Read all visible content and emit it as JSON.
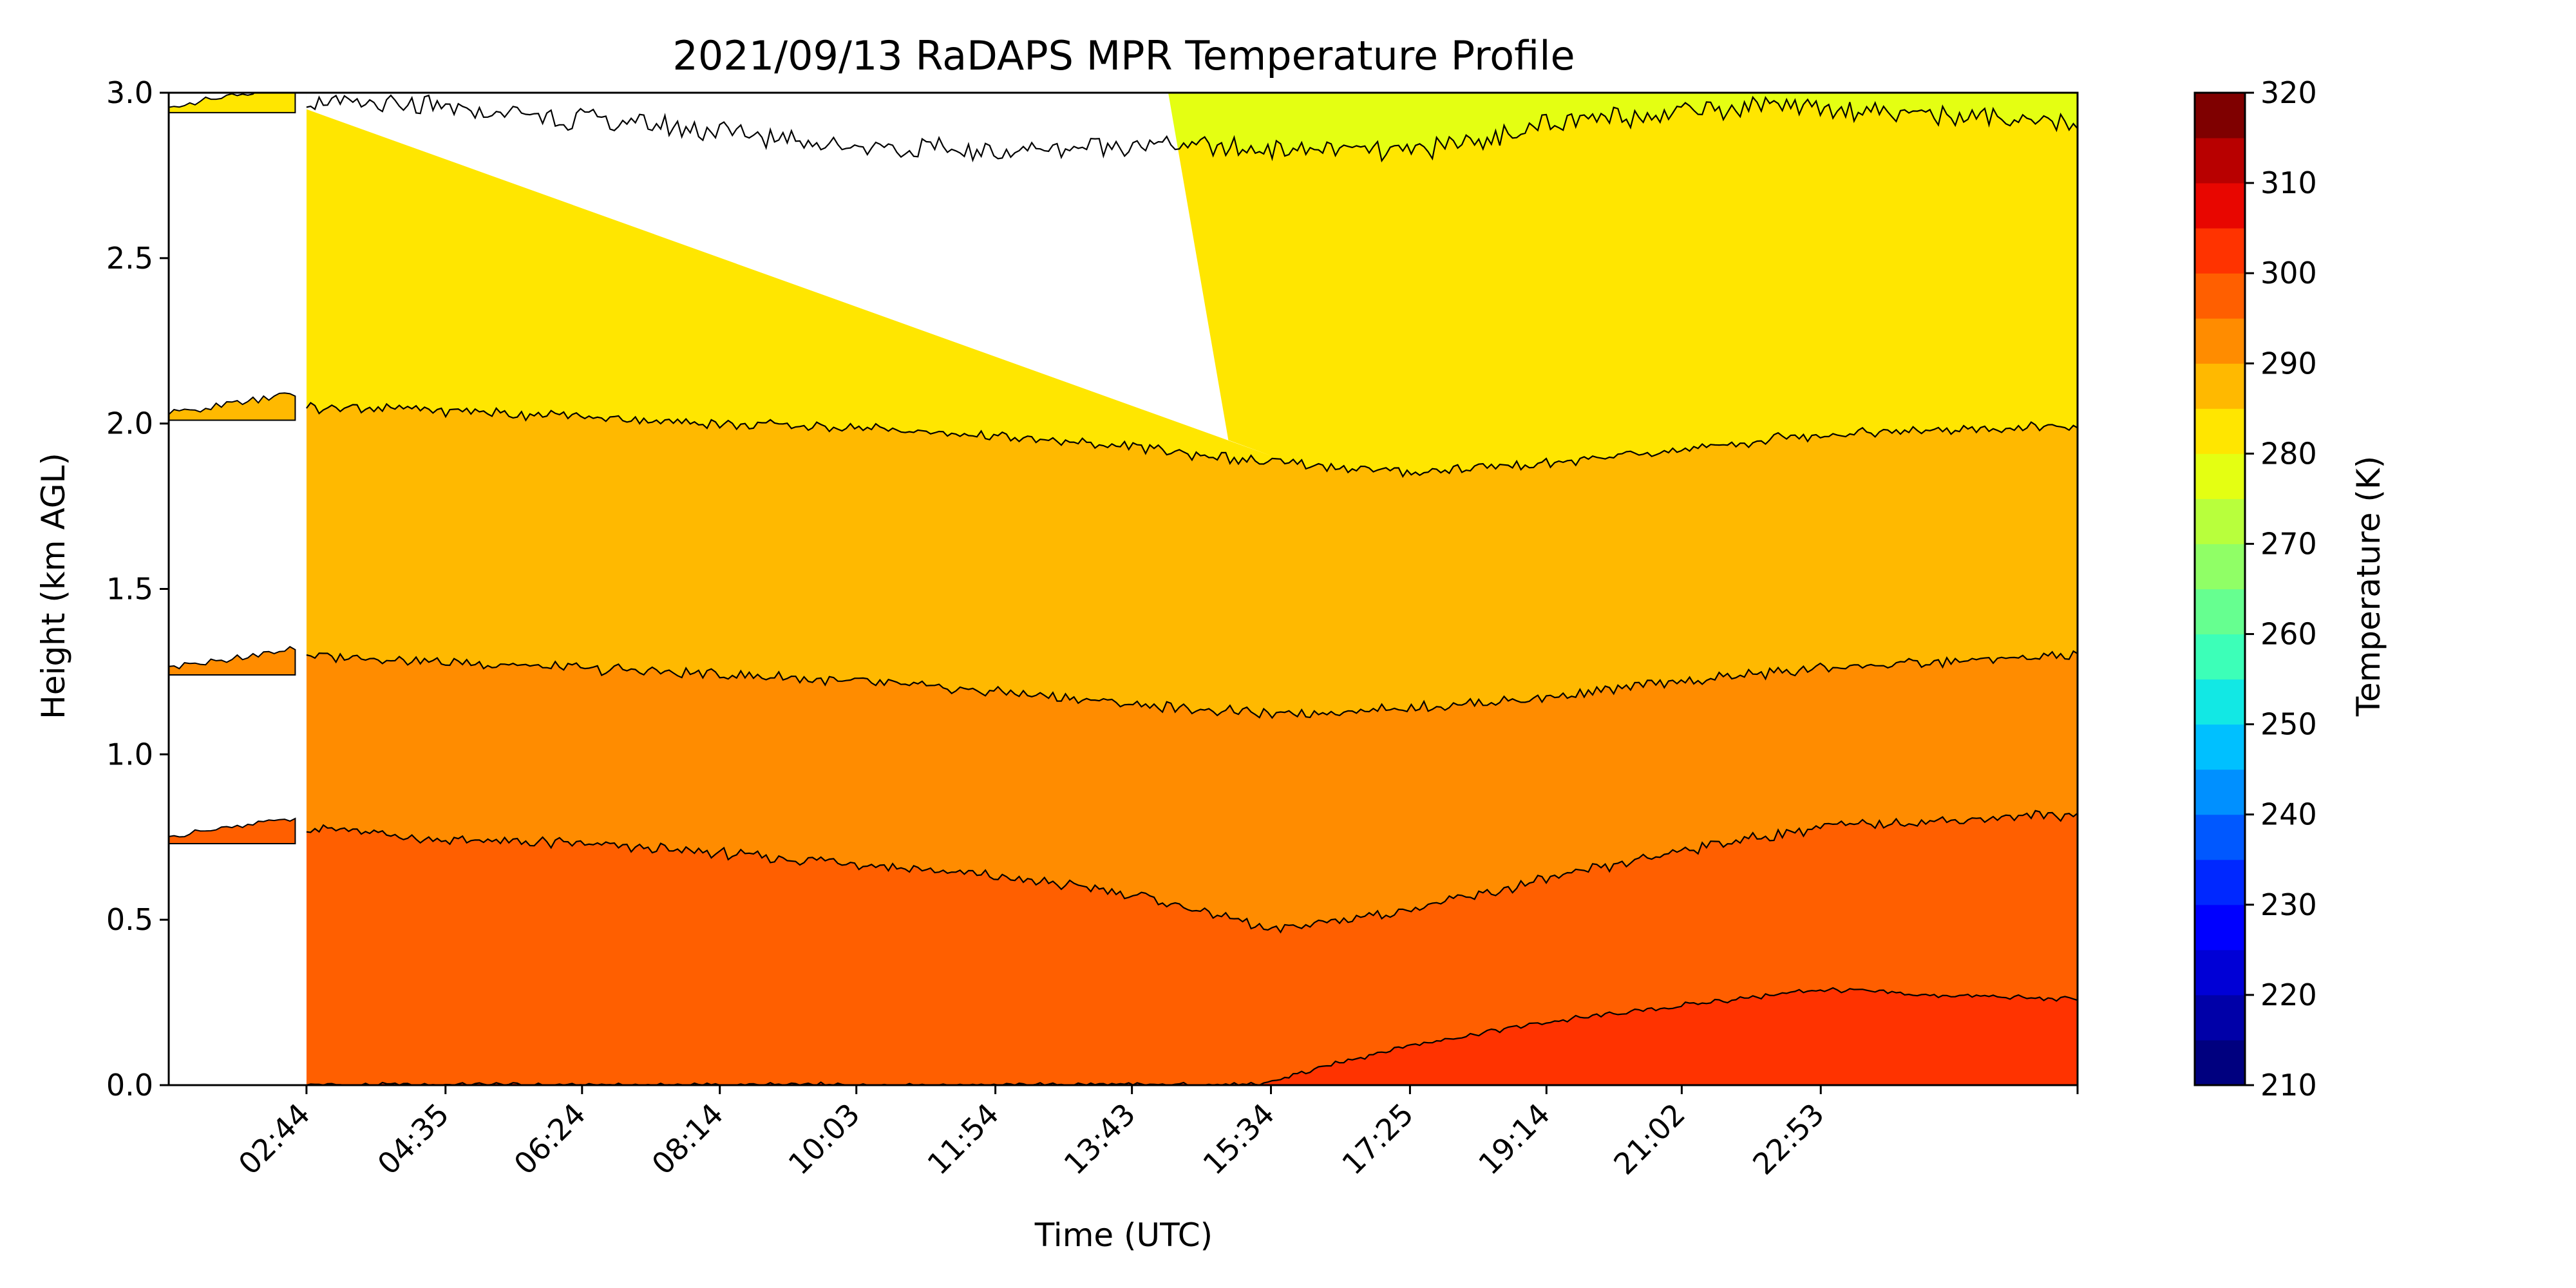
{
  "chart_data": {
    "type": "contourf",
    "title": "2021/09/13 RaDAPS MPR Temperature Profile",
    "xlabel": "Time (UTC)",
    "ylabel": "Height (km AGL)",
    "xlim_hours": [
      0.9,
      26.3
    ],
    "ylim": [
      0,
      3.0
    ],
    "x_tick_labels": [
      "02:44",
      "04:35",
      "06:24",
      "08:14",
      "10:03",
      "11:54",
      "13:43",
      "15:34",
      "17:25",
      "19:14",
      "21:02",
      "22:53"
    ],
    "x_tick_hours": [
      2.733,
      4.583,
      6.4,
      8.233,
      10.05,
      11.9,
      13.717,
      15.567,
      17.417,
      19.233,
      21.033,
      22.883
    ],
    "y_ticks": [
      0.0,
      0.5,
      1.0,
      1.5,
      2.0,
      2.5,
      3.0
    ],
    "y_tick_labels": [
      "0.0",
      "0.5",
      "1.0",
      "1.5",
      "2.0",
      "2.5",
      "3.0"
    ],
    "contour_levels_K": [
      210,
      215,
      220,
      225,
      230,
      235,
      240,
      245,
      250,
      255,
      260,
      265,
      270,
      275,
      280,
      285,
      290,
      295,
      300,
      305,
      310,
      315,
      320
    ],
    "level_colors": [
      "#00007f",
      "#0000a8",
      "#0000d6",
      "#0000ff",
      "#0028ff",
      "#0058ff",
      "#0090ff",
      "#00c0ff",
      "#12e8e4",
      "#3cffb8",
      "#66ff90",
      "#90ff66",
      "#b8ff3c",
      "#e4ff12",
      "#ffe600",
      "#ffb900",
      "#ff8c00",
      "#ff5f00",
      "#ff3300",
      "#e80600",
      "#b80000",
      "#7f0000"
    ],
    "isolines_km": [
      {
        "level_K": 300,
        "points": [
          [
            15.4,
            0.0
          ],
          [
            16.5,
            0.07
          ],
          [
            17.4,
            0.12
          ],
          [
            19.2,
            0.19
          ],
          [
            21.0,
            0.24
          ],
          [
            22.9,
            0.29
          ],
          [
            24.5,
            0.27
          ],
          [
            26.3,
            0.26
          ]
        ]
      },
      {
        "level_K": 295,
        "points": [
          [
            0.9,
            0.74
          ],
          [
            2.73,
            0.78
          ],
          [
            4.58,
            0.74
          ],
          [
            6.4,
            0.73
          ],
          [
            8.23,
            0.7
          ],
          [
            10.05,
            0.67
          ],
          [
            11.9,
            0.63
          ],
          [
            13.72,
            0.58
          ],
          [
            15.57,
            0.47
          ],
          [
            17.42,
            0.53
          ],
          [
            19.23,
            0.62
          ],
          [
            21.03,
            0.71
          ],
          [
            22.88,
            0.78
          ],
          [
            26.3,
            0.82
          ]
        ]
      },
      {
        "level_K": 290,
        "points": [
          [
            0.9,
            1.25
          ],
          [
            2.73,
            1.3
          ],
          [
            4.58,
            1.28
          ],
          [
            6.4,
            1.26
          ],
          [
            8.23,
            1.24
          ],
          [
            10.05,
            1.22
          ],
          [
            11.9,
            1.19
          ],
          [
            13.72,
            1.15
          ],
          [
            15.57,
            1.12
          ],
          [
            17.42,
            1.14
          ],
          [
            19.23,
            1.17
          ],
          [
            21.03,
            1.22
          ],
          [
            22.88,
            1.26
          ],
          [
            26.3,
            1.3
          ]
        ]
      },
      {
        "level_K": 285,
        "points": [
          [
            0.9,
            2.03
          ],
          [
            2.73,
            2.05
          ],
          [
            4.58,
            2.04
          ],
          [
            6.4,
            2.02
          ],
          [
            8.23,
            2.0
          ],
          [
            10.05,
            1.99
          ],
          [
            11.9,
            1.96
          ],
          [
            13.72,
            1.93
          ],
          [
            15.57,
            1.88
          ],
          [
            17.42,
            1.85
          ],
          [
            19.23,
            1.88
          ],
          [
            21.03,
            1.92
          ],
          [
            22.88,
            1.97
          ],
          [
            26.3,
            1.99
          ]
        ]
      },
      {
        "level_K": 280,
        "points": [
          [
            0.9,
            2.96
          ],
          [
            2.73,
            2.97
          ],
          [
            4.58,
            2.95
          ],
          [
            6.4,
            2.92
          ],
          [
            8.23,
            2.88
          ],
          [
            10.05,
            2.84
          ],
          [
            11.9,
            2.82
          ],
          [
            13.72,
            2.85
          ],
          [
            15.57,
            2.83
          ],
          [
            17.42,
            2.82
          ],
          [
            19.23,
            2.9
          ],
          [
            21.03,
            2.95
          ],
          [
            22.88,
            2.96
          ],
          [
            26.3,
            2.9
          ]
        ]
      }
    ],
    "colorbar": {
      "label": "Temperature (K)",
      "min": 210,
      "max": 320,
      "tick_values": [
        210,
        220,
        230,
        240,
        250,
        260,
        270,
        280,
        290,
        300,
        310,
        320
      ],
      "tick_labels": [
        "210",
        "220",
        "230",
        "240",
        "250",
        "260",
        "270",
        "280",
        "290",
        "300",
        "310",
        "320"
      ]
    },
    "grid": false,
    "legend": "none"
  }
}
